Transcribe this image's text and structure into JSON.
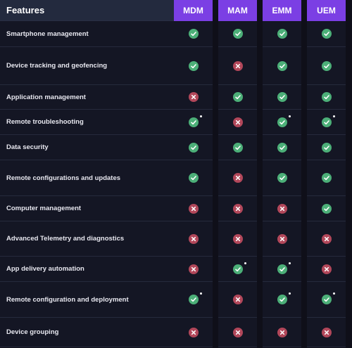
{
  "header": {
    "features_label": "Features",
    "columns": [
      "MDM",
      "MAM",
      "EMM",
      "UEM"
    ]
  },
  "colors": {
    "accent": "#7b3fe4",
    "check": "#4caf78",
    "cross": "#b2475a",
    "background": "#141624"
  },
  "rows": [
    {
      "feature": "Smartphone management",
      "values": [
        "check",
        "check",
        "check",
        "check"
      ],
      "notes": [
        false,
        false,
        false,
        false
      ]
    },
    {
      "feature": "Device tracking  and geofencing",
      "values": [
        "check",
        "cross",
        "check",
        "check"
      ],
      "notes": [
        false,
        false,
        false,
        false
      ]
    },
    {
      "feature": "Application management",
      "values": [
        "cross",
        "check",
        "check",
        "check"
      ],
      "notes": [
        false,
        false,
        false,
        false
      ]
    },
    {
      "feature": "Remote troubleshooting",
      "values": [
        "check",
        "cross",
        "check",
        "check"
      ],
      "notes": [
        true,
        false,
        true,
        true
      ]
    },
    {
      "feature": "Data security",
      "values": [
        "check",
        "check",
        "check",
        "check"
      ],
      "notes": [
        false,
        false,
        false,
        false
      ]
    },
    {
      "feature": "Remote configurations and updates",
      "values": [
        "check",
        "cross",
        "check",
        "check"
      ],
      "notes": [
        false,
        false,
        false,
        false
      ]
    },
    {
      "feature": "Computer management",
      "values": [
        "cross",
        "cross",
        "cross",
        "check"
      ],
      "notes": [
        false,
        false,
        false,
        false
      ]
    },
    {
      "feature": "Advanced Telemetry and diagnostics",
      "values": [
        "cross",
        "cross",
        "cross",
        "cross"
      ],
      "notes": [
        false,
        false,
        false,
        false
      ]
    },
    {
      "feature": "App delivery automation",
      "values": [
        "cross",
        "check",
        "check",
        "cross"
      ],
      "notes": [
        false,
        true,
        true,
        false
      ]
    },
    {
      "feature": "Remote configuration and deployment",
      "values": [
        "check",
        "cross",
        "check",
        "check"
      ],
      "notes": [
        true,
        false,
        true,
        true
      ]
    },
    {
      "feature": "Device grouping",
      "values": [
        "cross",
        "cross",
        "cross",
        "cross"
      ],
      "notes": [
        false,
        false,
        false,
        false
      ]
    }
  ]
}
